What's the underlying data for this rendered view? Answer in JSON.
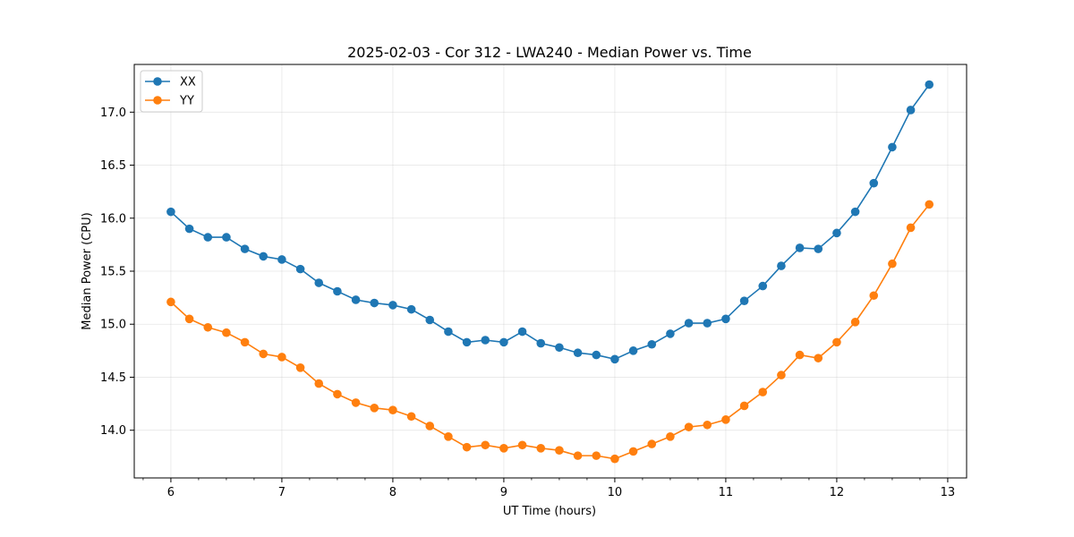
{
  "chart_data": {
    "type": "line",
    "title": "2025-02-03 - Cor 312 - LWA240 - Median Power vs. Time",
    "xlabel": "UT Time (hours)",
    "ylabel": "Median Power (CPU)",
    "xlim": [
      5.67,
      13.17
    ],
    "ylim": [
      13.55,
      17.45
    ],
    "xticks": [
      6,
      7,
      8,
      9,
      10,
      11,
      12,
      13
    ],
    "yticks": [
      14.0,
      14.5,
      15.0,
      15.5,
      16.0,
      16.5,
      17.0
    ],
    "xtick_labels": [
      "6",
      "7",
      "8",
      "9",
      "10",
      "11",
      "12",
      "13"
    ],
    "ytick_labels": [
      "14.0",
      "14.5",
      "15.0",
      "15.5",
      "16.0",
      "16.5",
      "17.0"
    ],
    "grid": true,
    "legend_position": "top-left",
    "x": [
      6.0,
      6.1667,
      6.3333,
      6.5,
      6.6667,
      6.8333,
      7.0,
      7.1667,
      7.3333,
      7.5,
      7.6667,
      7.8333,
      8.0,
      8.1667,
      8.3333,
      8.5,
      8.6667,
      8.8333,
      9.0,
      9.1667,
      9.3333,
      9.5,
      9.6667,
      9.8333,
      10.0,
      10.1667,
      10.3333,
      10.5,
      10.6667,
      10.8333,
      11.0,
      11.1667,
      11.3333,
      11.5,
      11.6667,
      11.8333,
      12.0,
      12.1667,
      12.3333,
      12.5,
      12.6667,
      12.8333
    ],
    "series": [
      {
        "name": "XX",
        "color": "#1f77b4",
        "values": [
          16.06,
          15.9,
          15.82,
          15.82,
          15.71,
          15.64,
          15.61,
          15.52,
          15.39,
          15.31,
          15.23,
          15.2,
          15.18,
          15.14,
          15.04,
          14.93,
          14.83,
          14.85,
          14.83,
          14.93,
          14.82,
          14.78,
          14.73,
          14.71,
          14.67,
          14.75,
          14.81,
          14.91,
          15.01,
          15.01,
          15.05,
          15.22,
          15.36,
          15.55,
          15.72,
          15.71,
          15.86,
          16.06,
          16.33,
          16.67,
          17.02,
          17.26
        ]
      },
      {
        "name": "YY",
        "color": "#ff7f0e",
        "values": [
          15.21,
          15.05,
          14.97,
          14.92,
          14.83,
          14.72,
          14.69,
          14.59,
          14.44,
          14.34,
          14.26,
          14.21,
          14.19,
          14.13,
          14.04,
          13.94,
          13.84,
          13.86,
          13.83,
          13.86,
          13.83,
          13.81,
          13.76,
          13.76,
          13.73,
          13.8,
          13.87,
          13.94,
          14.03,
          14.05,
          14.1,
          14.23,
          14.36,
          14.52,
          14.71,
          14.68,
          14.83,
          15.02,
          15.27,
          15.57,
          15.91,
          16.13
        ]
      }
    ]
  }
}
